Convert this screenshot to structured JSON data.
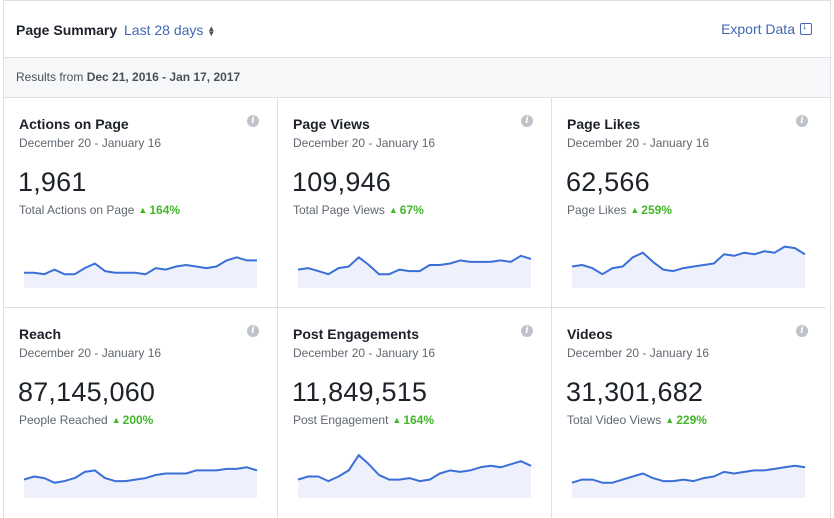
{
  "header": {
    "title": "Page Summary",
    "range_label": "Last 28 days",
    "export_label": "Export Data"
  },
  "subheader": {
    "prefix": "Results from ",
    "dates": "Dec 21, 2016 - Jan 17, 2017"
  },
  "colors": {
    "accent": "#4267b2",
    "positive": "#42b72a",
    "spark_line": "#3b6fd8",
    "spark_fill": "#eef1fb"
  },
  "cards": [
    {
      "title": "Actions on Page",
      "date_range": "December 20 - January 16",
      "value": "1,961",
      "label": "Total Actions on Page",
      "change": "164%",
      "spark": [
        10,
        10,
        9,
        12,
        9,
        9,
        13,
        16,
        11,
        10,
        10,
        10,
        9,
        13,
        12,
        14,
        15,
        14,
        13,
        14,
        18,
        20,
        18,
        18
      ]
    },
    {
      "title": "Page Views",
      "date_range": "December 20 - January 16",
      "value": "109,946",
      "label": "Total Page Views",
      "change": "67%",
      "spark": [
        12,
        13,
        11,
        9,
        13,
        14,
        20,
        15,
        9,
        9,
        12,
        11,
        11,
        15,
        15,
        16,
        18,
        17,
        17,
        17,
        18,
        17,
        21,
        19
      ]
    },
    {
      "title": "Page Likes",
      "date_range": "December 20 - January 16",
      "value": "62,566",
      "label": "Page Likes",
      "change": "259%",
      "spark": [
        14,
        15,
        13,
        9,
        13,
        14,
        20,
        23,
        17,
        12,
        11,
        13,
        14,
        15,
        16,
        22,
        21,
        23,
        22,
        24,
        23,
        27,
        26,
        22
      ]
    },
    {
      "title": "Reach",
      "date_range": "December 20 - January 16",
      "value": "87,145,060",
      "label": "People Reached",
      "change": "200%",
      "spark": [
        12,
        14,
        13,
        10,
        11,
        13,
        17,
        18,
        13,
        11,
        11,
        12,
        13,
        15,
        16,
        16,
        16,
        18,
        18,
        18,
        19,
        19,
        20,
        18
      ]
    },
    {
      "title": "Post Engagements",
      "date_range": "December 20 - January 16",
      "value": "11,849,515",
      "label": "Post Engagement",
      "change": "164%",
      "spark": [
        12,
        14,
        14,
        11,
        14,
        18,
        28,
        22,
        15,
        12,
        12,
        13,
        11,
        12,
        16,
        18,
        17,
        18,
        20,
        21,
        20,
        22,
        24,
        21
      ]
    },
    {
      "title": "Videos",
      "date_range": "December 20 - January 16",
      "value": "31,301,682",
      "label": "Total Video Views",
      "change": "229%",
      "spark": [
        10,
        12,
        12,
        10,
        10,
        12,
        14,
        16,
        13,
        11,
        11,
        12,
        11,
        13,
        14,
        17,
        16,
        17,
        18,
        18,
        19,
        20,
        21,
        20
      ]
    }
  ]
}
